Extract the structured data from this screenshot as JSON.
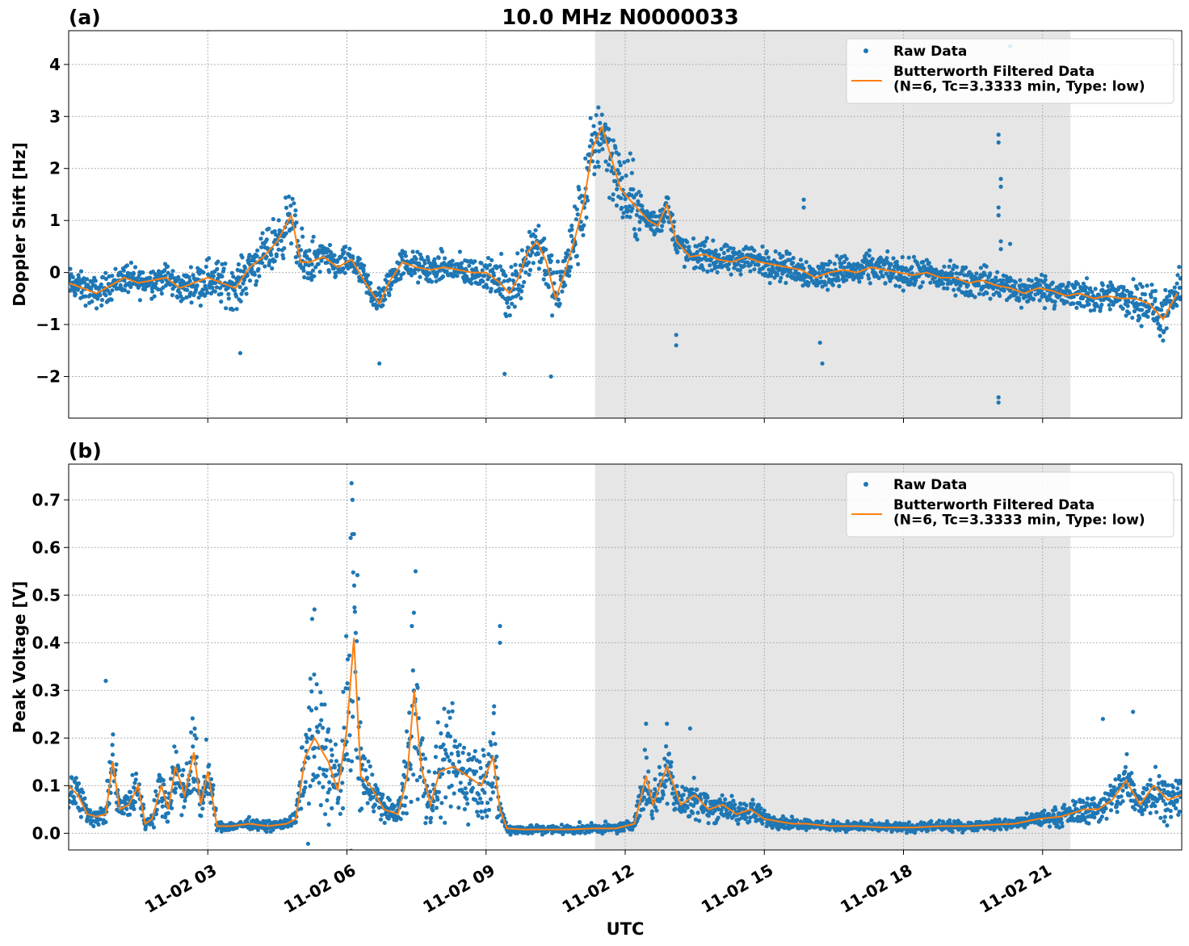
{
  "figure": {
    "title": "10.0 MHz N0000033",
    "xlabel": "UTC",
    "x_tick_labels": [
      "11-02 03",
      "11-02 06",
      "11-02 09",
      "11-02 12",
      "11-02 15",
      "11-02 18",
      "11-02 21"
    ],
    "colors": {
      "raw": "#1f77b4",
      "filtered": "#ff7f0e",
      "shade": "#e6e6e6",
      "grid": "#b0b0b0"
    }
  },
  "chart_data": [
    {
      "type": "scatter",
      "panel_label": "(a)",
      "ylabel": "Doppler Shift [Hz]",
      "xlim": [
        0.0,
        24.0
      ],
      "ylim": [
        -2.8,
        4.65
      ],
      "grid": true,
      "x_ticks": [
        3,
        6,
        9,
        12,
        15,
        18,
        21
      ],
      "y_ticks": [
        -2,
        -1,
        0,
        1,
        2,
        3,
        4
      ],
      "y_tick_labels": [
        "−2",
        "−1",
        "0",
        "1",
        "2",
        "3",
        "4"
      ],
      "shaded_x_range": [
        11.35,
        21.6
      ],
      "legend": {
        "position": "top-right",
        "entries": [
          "Raw Data",
          "Butterworth Filtered Data\n(N=6, Tc=3.3333 min, Type: low)"
        ]
      },
      "series": [
        {
          "name": "Butterworth Filtered Data\n(N=6, Tc=3.3333 min, Type: low)",
          "kind": "line",
          "x": [
            0.0,
            0.3,
            0.6,
            0.9,
            1.2,
            1.5,
            1.8,
            2.1,
            2.4,
            2.7,
            3.0,
            3.3,
            3.6,
            3.9,
            4.2,
            4.5,
            4.8,
            5.0,
            5.2,
            5.5,
            5.8,
            6.1,
            6.4,
            6.7,
            6.9,
            7.2,
            7.5,
            7.8,
            8.1,
            8.4,
            8.7,
            9.0,
            9.3,
            9.5,
            9.7,
            9.9,
            10.1,
            10.3,
            10.5,
            10.7,
            10.9,
            11.1,
            11.3,
            11.5,
            11.7,
            11.9,
            12.1,
            12.3,
            12.5,
            12.7,
            12.9,
            13.1,
            13.4,
            13.7,
            14.0,
            14.3,
            14.6,
            14.9,
            15.2,
            15.5,
            15.8,
            16.1,
            16.4,
            16.7,
            17.0,
            17.3,
            17.6,
            17.9,
            18.2,
            18.5,
            18.8,
            19.1,
            19.4,
            19.7,
            20.0,
            20.3,
            20.6,
            20.9,
            21.2,
            21.5,
            21.8,
            22.1,
            22.4,
            22.7,
            23.0,
            23.3,
            23.6,
            23.9
          ],
          "y": [
            -0.2,
            -0.3,
            -0.4,
            -0.25,
            -0.1,
            -0.2,
            -0.15,
            -0.1,
            -0.3,
            -0.2,
            -0.1,
            -0.2,
            -0.3,
            0.1,
            0.3,
            0.6,
            1.1,
            0.2,
            0.2,
            0.3,
            0.1,
            0.25,
            -0.2,
            -0.6,
            -0.2,
            0.2,
            0.1,
            0.05,
            0.1,
            0.05,
            0.0,
            0.0,
            -0.2,
            -0.4,
            -0.1,
            0.4,
            0.6,
            0.2,
            -0.5,
            0.0,
            0.6,
            1.3,
            2.4,
            2.8,
            2.2,
            1.6,
            1.4,
            1.2,
            1.0,
            0.9,
            1.3,
            0.6,
            0.3,
            0.35,
            0.25,
            0.2,
            0.3,
            0.2,
            0.15,
            0.1,
            0.05,
            -0.1,
            0.0,
            0.05,
            0.0,
            0.1,
            0.05,
            0.0,
            -0.05,
            0.0,
            -0.1,
            -0.1,
            -0.2,
            -0.15,
            -0.25,
            -0.3,
            -0.4,
            -0.3,
            -0.35,
            -0.45,
            -0.4,
            -0.5,
            -0.45,
            -0.5,
            -0.5,
            -0.6,
            -0.9,
            -0.4
          ]
        },
        {
          "name": "Raw Data",
          "kind": "scatter",
          "outliers_x": [
            15.85,
            15.85,
            16.2,
            16.25,
            13.1,
            13.1,
            20.05,
            20.05,
            20.1,
            20.1,
            20.05,
            20.05,
            20.1,
            20.1,
            20.05,
            20.05,
            20.3,
            20.3,
            20.3,
            9.4,
            10.4,
            3.7,
            6.7
          ],
          "outliers_y": [
            1.4,
            1.25,
            -1.35,
            -1.75,
            -1.2,
            -1.4,
            2.65,
            2.5,
            1.8,
            1.65,
            1.25,
            1.1,
            0.6,
            0.45,
            -2.4,
            -2.5,
            4.35,
            0.55,
            -0.1,
            -1.95,
            -2.0,
            -1.55,
            -1.75
          ]
        }
      ]
    },
    {
      "type": "scatter",
      "panel_label": "(b)",
      "ylabel": "Peak Voltage [V]",
      "xlim": [
        0.0,
        24.0
      ],
      "ylim": [
        -0.035,
        0.775
      ],
      "grid": true,
      "x_ticks": [
        3,
        6,
        9,
        12,
        15,
        18,
        21
      ],
      "y_ticks": [
        0.0,
        0.1,
        0.2,
        0.3,
        0.4,
        0.5,
        0.6,
        0.7
      ],
      "y_tick_labels": [
        "0.0",
        "0.1",
        "0.2",
        "0.3",
        "0.4",
        "0.5",
        "0.6",
        "0.7"
      ],
      "shaded_x_range": [
        11.35,
        21.6
      ],
      "legend": {
        "position": "top-right",
        "entries": [
          "Raw Data",
          "Butterworth Filtered Data\n(N=6, Tc=3.3333 min, Type: low)"
        ]
      },
      "series": [
        {
          "name": "Butterworth Filtered Data\n(N=6, Tc=3.3333 min, Type: low)",
          "kind": "line",
          "x": [
            0.0,
            0.2,
            0.4,
            0.6,
            0.8,
            0.95,
            1.1,
            1.3,
            1.5,
            1.65,
            1.8,
            2.0,
            2.15,
            2.3,
            2.5,
            2.7,
            2.85,
            3.0,
            3.2,
            3.5,
            3.9,
            4.3,
            4.7,
            4.9,
            5.1,
            5.3,
            5.6,
            5.8,
            6.0,
            6.15,
            6.3,
            6.5,
            6.8,
            7.1,
            7.3,
            7.45,
            7.6,
            7.8,
            8.0,
            8.3,
            8.6,
            8.9,
            9.15,
            9.3,
            9.45,
            9.8,
            10.3,
            10.8,
            11.3,
            11.8,
            12.2,
            12.45,
            12.6,
            12.9,
            13.2,
            13.5,
            13.8,
            14.1,
            14.4,
            14.7,
            15.0,
            15.3,
            15.6,
            15.9,
            16.4,
            17.0,
            17.6,
            18.2,
            18.8,
            19.4,
            19.9,
            20.4,
            20.9,
            21.4,
            21.9,
            22.2,
            22.5,
            22.8,
            23.1,
            23.4,
            23.7,
            24.0
          ],
          "y": [
            0.1,
            0.08,
            0.04,
            0.035,
            0.04,
            0.15,
            0.05,
            0.06,
            0.1,
            0.02,
            0.03,
            0.1,
            0.05,
            0.14,
            0.08,
            0.17,
            0.06,
            0.13,
            0.015,
            0.015,
            0.02,
            0.015,
            0.02,
            0.03,
            0.16,
            0.2,
            0.15,
            0.09,
            0.22,
            0.41,
            0.12,
            0.1,
            0.05,
            0.04,
            0.12,
            0.3,
            0.14,
            0.06,
            0.13,
            0.14,
            0.12,
            0.1,
            0.16,
            0.05,
            0.01,
            0.008,
            0.008,
            0.008,
            0.01,
            0.01,
            0.02,
            0.12,
            0.06,
            0.14,
            0.06,
            0.08,
            0.05,
            0.06,
            0.04,
            0.05,
            0.03,
            0.025,
            0.02,
            0.02,
            0.015,
            0.015,
            0.012,
            0.012,
            0.015,
            0.015,
            0.018,
            0.02,
            0.03,
            0.035,
            0.05,
            0.05,
            0.07,
            0.11,
            0.06,
            0.1,
            0.07,
            0.08
          ]
        },
        {
          "name": "Raw Data",
          "kind": "scatter",
          "outliers_x": [
            6.1,
            6.12,
            6.08,
            7.48,
            9.3,
            9.3,
            0.8,
            5.3,
            5.25,
            12.45,
            12.9,
            13.4,
            22.3,
            22.95
          ],
          "outliers_y": [
            0.735,
            0.7,
            0.62,
            0.55,
            0.435,
            0.4,
            0.32,
            0.47,
            0.45,
            0.23,
            0.23,
            0.22,
            0.24,
            0.255
          ]
        }
      ]
    }
  ]
}
